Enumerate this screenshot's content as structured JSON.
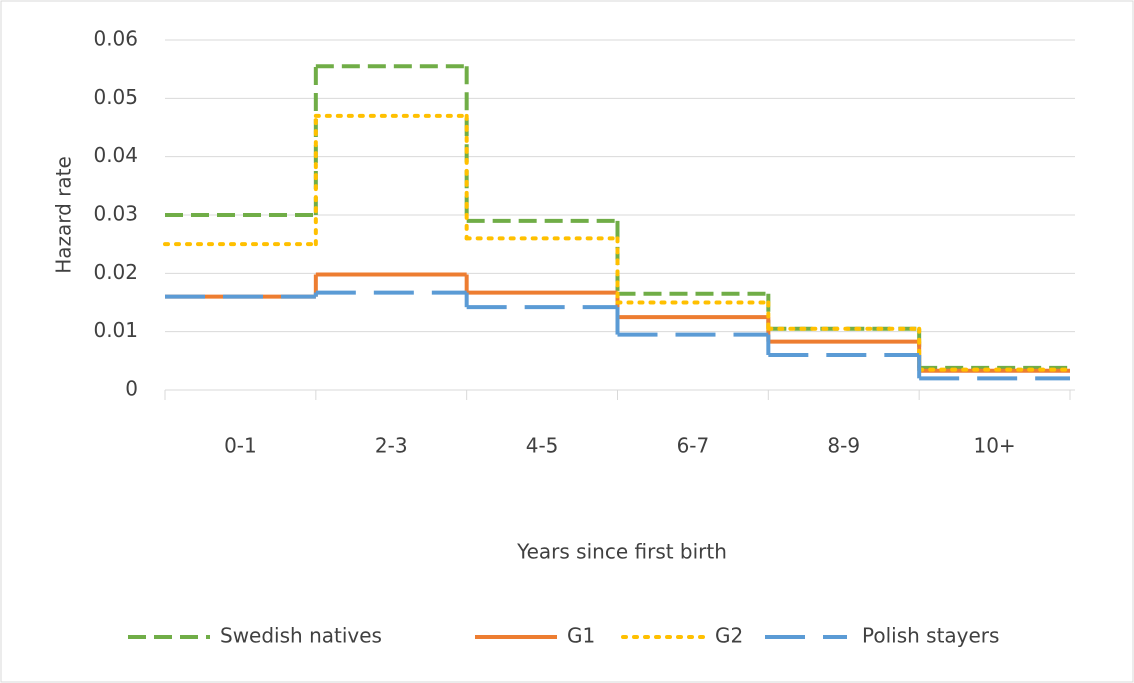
{
  "chart_data": {
    "type": "step",
    "x_label": "Years since first birth",
    "y_label": "Hazard rate",
    "categories": [
      "0-1",
      "2-3",
      "4-5",
      "6-7",
      "8-9",
      "10+"
    ],
    "ylim": [
      0,
      0.06
    ],
    "yticks": [
      0,
      0.01,
      0.02,
      0.03,
      0.04,
      0.05,
      0.06
    ],
    "grid": true,
    "legend": "bottom",
    "series": [
      {
        "name": "Swedish natives",
        "color": "#70ad47",
        "line_style": "dashed",
        "values": [
          0.03,
          0.0555,
          0.029,
          0.0165,
          0.0105,
          0.0038
        ]
      },
      {
        "name": "G1",
        "color": "#ed7d31",
        "line_style": "solid",
        "values": [
          0.016,
          0.0198,
          0.0167,
          0.0125,
          0.0083,
          0.0033
        ]
      },
      {
        "name": "G2",
        "color": "#ffc000",
        "line_style": "dotted",
        "values": [
          0.025,
          0.047,
          0.026,
          0.015,
          0.0105,
          0.0035
        ]
      },
      {
        "name": "Polish stayers",
        "color": "#5b9bd5",
        "line_style": "longdash",
        "values": [
          0.016,
          0.0167,
          0.0142,
          0.0095,
          0.006,
          0.002
        ]
      }
    ]
  }
}
